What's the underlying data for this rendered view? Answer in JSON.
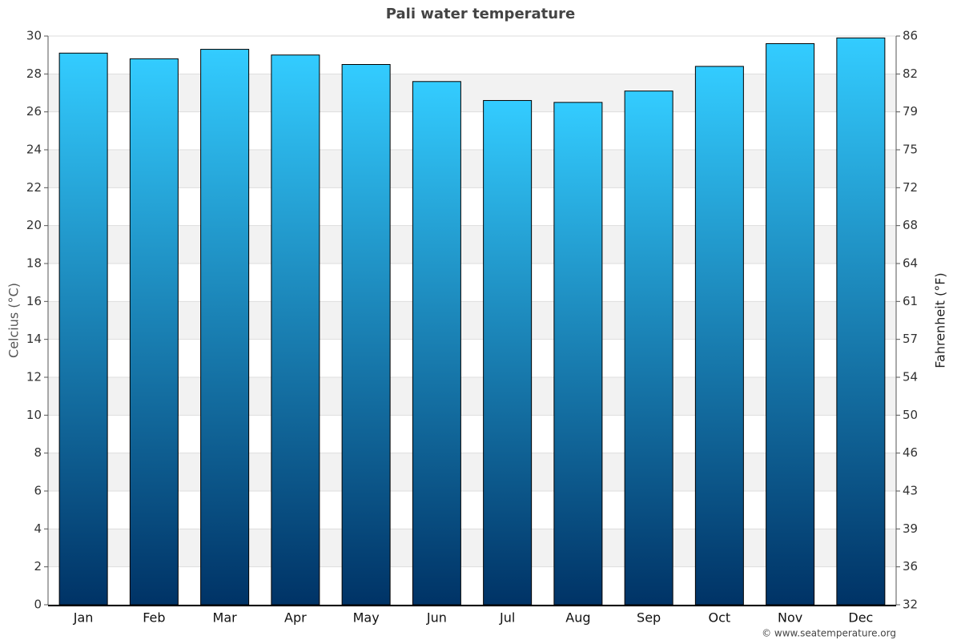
{
  "chart_data": {
    "type": "bar",
    "title": "Pali water temperature",
    "categories": [
      "Jan",
      "Feb",
      "Mar",
      "Apr",
      "May",
      "Jun",
      "Jul",
      "Aug",
      "Sep",
      "Oct",
      "Nov",
      "Dec"
    ],
    "values": [
      29.1,
      28.8,
      29.3,
      29.0,
      28.5,
      27.6,
      26.6,
      26.5,
      27.1,
      28.4,
      29.6,
      29.9
    ],
    "color_top": "#33ccff",
    "color_bottom": "#003366",
    "ylabel": "Celcius (°C)",
    "y2label": "Fahrenheit (°F)",
    "ylim": [
      0,
      30
    ],
    "yticks": [
      0,
      2,
      4,
      6,
      8,
      10,
      12,
      14,
      16,
      18,
      20,
      22,
      24,
      26,
      28,
      30
    ],
    "y2lim": [
      32,
      86
    ],
    "y2ticks": [
      32,
      {
        "value": 35.6,
        "label": "36"
      },
      {
        "value": 39.2,
        "label": "39"
      },
      {
        "value": 42.8,
        "label": "43"
      },
      {
        "value": 46.4,
        "label": "46"
      },
      50,
      {
        "value": 53.6,
        "label": "54"
      },
      {
        "value": 57.2,
        "label": "57"
      },
      {
        "value": 60.8,
        "label": "61"
      },
      {
        "value": 64.4,
        "label": "64"
      },
      68,
      {
        "value": 71.6,
        "label": "72"
      },
      {
        "value": 75.2,
        "label": "75"
      },
      {
        "value": 78.8,
        "label": "79"
      },
      {
        "value": 82.4,
        "label": "82"
      },
      86
    ],
    "grid": true,
    "credit": "© www.seatemperature.org"
  }
}
